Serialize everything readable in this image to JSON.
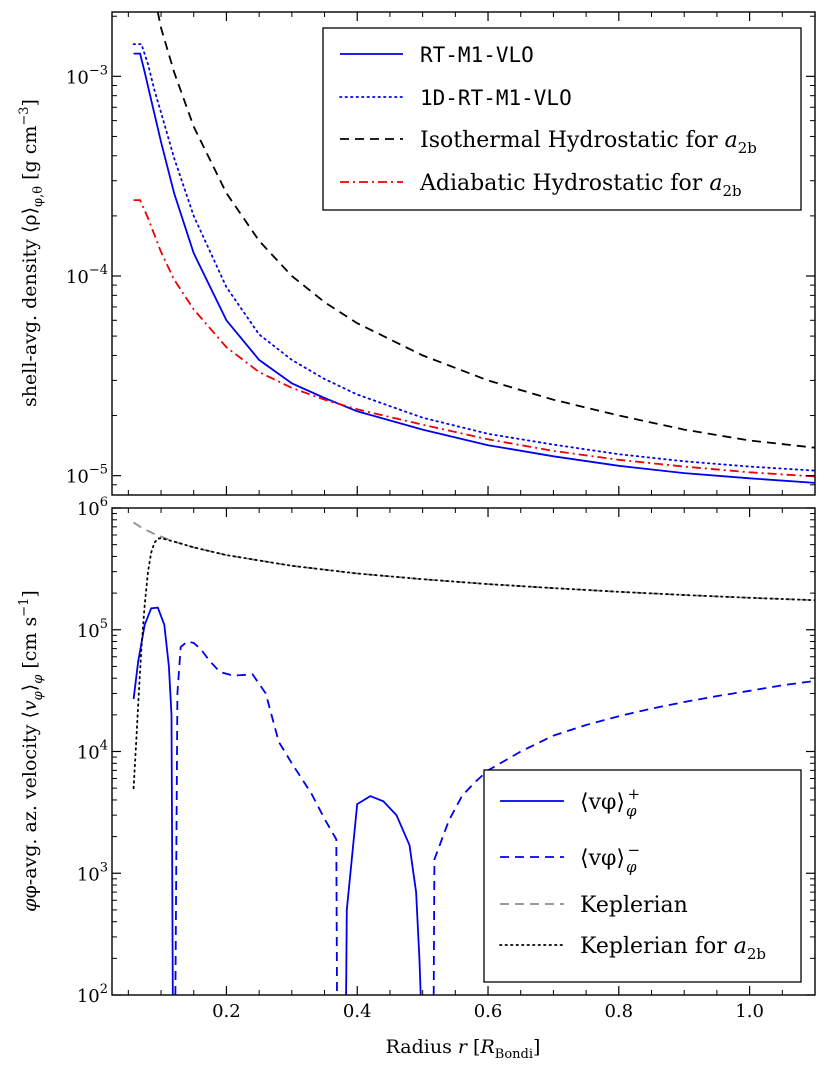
{
  "chart_data": [
    {
      "type": "line",
      "panel": "top",
      "yscale": "log",
      "ylabel": "shell-avg. density ⟨ρ⟩φ,θ [g cm⁻³]",
      "ylabel_parts": {
        "main": "shell-avg. density ⟨ρ⟩",
        "sub": "φ,θ",
        "unit_open": " [g cm",
        "unit_exp": "−3",
        "unit_close": "]"
      },
      "xlim": [
        0.025,
        1.1
      ],
      "ylim": [
        8e-06,
        0.0021
      ],
      "yticks": [
        {
          "value": 1e-05,
          "label": "10",
          "exp": "−5"
        },
        {
          "value": 0.0001,
          "label": "10",
          "exp": "−4"
        },
        {
          "value": 0.001,
          "label": "10",
          "exp": "−3"
        }
      ],
      "legend": {
        "placement": "top-right",
        "entries": [
          {
            "label": "RT-M1-VLO",
            "mono": true,
            "style": "solid",
            "color": "#0000ee"
          },
          {
            "label": "1D-RT-M1-VLO",
            "mono": true,
            "style": "dotted",
            "color": "#0000ee"
          },
          {
            "label": "Isothermal Hydrostatic for ",
            "math": "a",
            "sub": "2b",
            "style": "dashed",
            "color": "#000000"
          },
          {
            "label": "Adiabatic Hydrostatic for ",
            "math": "a",
            "sub": "2b",
            "style": "dashdot",
            "color": "#ee0000"
          }
        ]
      },
      "series": [
        {
          "name": "RT-M1-VLO",
          "style": "solid",
          "color": "#0000ee",
          "x": [
            0.058,
            0.068,
            0.075,
            0.085,
            0.1,
            0.12,
            0.15,
            0.2,
            0.25,
            0.3,
            0.35,
            0.4,
            0.5,
            0.6,
            0.7,
            0.8,
            0.9,
            1.0,
            1.1
          ],
          "y": [
            0.0013,
            0.0013,
            0.00105,
            0.00076,
            0.00047,
            0.00026,
            0.00013,
            6e-05,
            3.8e-05,
            2.9e-05,
            2.45e-05,
            2.1e-05,
            1.7e-05,
            1.42e-05,
            1.25e-05,
            1.12e-05,
            1.03e-05,
            9.7e-06,
            9.2e-06
          ]
        },
        {
          "name": "1D-RT-M1-VLO",
          "style": "dotted",
          "color": "#0000ee",
          "x": [
            0.058,
            0.07,
            0.08,
            0.09,
            0.1,
            0.12,
            0.15,
            0.2,
            0.25,
            0.3,
            0.35,
            0.4,
            0.5,
            0.6,
            0.7,
            0.8,
            0.9,
            1.0,
            1.1
          ],
          "y": [
            0.00145,
            0.00145,
            0.00115,
            0.00085,
            0.00066,
            0.00039,
            0.0002,
            8.8e-05,
            5.1e-05,
            3.8e-05,
            3.05e-05,
            2.55e-05,
            1.95e-05,
            1.62e-05,
            1.43e-05,
            1.28e-05,
            1.18e-05,
            1.11e-05,
            1.06e-05
          ]
        },
        {
          "name": "Isothermal Hydrostatic for a2b",
          "style": "dashed",
          "color": "#000000",
          "x": [
            0.095,
            0.1,
            0.12,
            0.15,
            0.2,
            0.25,
            0.3,
            0.35,
            0.4,
            0.5,
            0.6,
            0.7,
            0.8,
            0.9,
            1.0,
            1.1
          ],
          "y": [
            0.0021,
            0.00175,
            0.00105,
            0.00056,
            0.00026,
            0.00015,
            0.0001,
            7.4e-05,
            5.8e-05,
            4e-05,
            3e-05,
            2.4e-05,
            2e-05,
            1.7e-05,
            1.5e-05,
            1.38e-05
          ]
        },
        {
          "name": "Adiabatic Hydrostatic for a2b",
          "style": "dashdot",
          "color": "#ee0000",
          "x": [
            0.058,
            0.068,
            0.08,
            0.1,
            0.12,
            0.15,
            0.2,
            0.25,
            0.3,
            0.35,
            0.4,
            0.5,
            0.6,
            0.7,
            0.8,
            0.9,
            1.0,
            1.1
          ],
          "y": [
            0.00024,
            0.00024,
            0.000195,
            0.000132,
            9.6e-05,
            6.8e-05,
            4.4e-05,
            3.3e-05,
            2.75e-05,
            2.4e-05,
            2.15e-05,
            1.8e-05,
            1.52e-05,
            1.33e-05,
            1.2e-05,
            1.11e-05,
            1.04e-05,
            9.9e-06
          ]
        }
      ]
    },
    {
      "type": "line",
      "panel": "bottom",
      "yscale": "log",
      "xlabel": "Radius r [R_Bondi]",
      "xlabel_parts": {
        "main": "Radius ",
        "math": "r",
        "open": " [",
        "unit": "R",
        "sub": "Bondi",
        "close": "]"
      },
      "ylabel": "φ-avg. az. velocity ⟨vφ⟩φ [cm s⁻¹]",
      "ylabel_parts": {
        "main": "φ-avg. az. velocity ⟨",
        "v": "v",
        "vsub": "φ",
        "close": "⟩",
        "sub": "φ",
        "unit_open": " [cm s",
        "unit_exp": "−1",
        "unit_close": "]"
      },
      "xlim": [
        0.025,
        1.1
      ],
      "ylim": [
        100,
        1000000
      ],
      "xticks": [
        {
          "value": 0.2,
          "label": "0.2"
        },
        {
          "value": 0.4,
          "label": "0.4"
        },
        {
          "value": 0.6,
          "label": "0.6"
        },
        {
          "value": 0.8,
          "label": "0.8"
        },
        {
          "value": 1.0,
          "label": "1.0"
        }
      ],
      "yticks": [
        {
          "value": 100,
          "label": "10",
          "exp": "2"
        },
        {
          "value": 1000,
          "label": "10",
          "exp": "3"
        },
        {
          "value": 10000,
          "label": "10",
          "exp": "4"
        },
        {
          "value": 100000,
          "label": "10",
          "exp": "5"
        },
        {
          "value": 1000000,
          "label": "10",
          "exp": "6"
        }
      ],
      "legend": {
        "placement": "bottom-right",
        "entries": [
          {
            "label": "⟨vφ⟩",
            "sub": "φ",
            "sup": "+",
            "style": "solid",
            "color": "#0000ee"
          },
          {
            "label": "⟨vφ⟩",
            "sub": "φ",
            "sup": "−",
            "style": "dashed",
            "color": "#0000ee"
          },
          {
            "label": "Keplerian",
            "style": "dashed",
            "color": "#8c8c8c"
          },
          {
            "label": "Keplerian for ",
            "math": "a",
            "sub": "2b",
            "style": "dotted",
            "color": "#000000"
          }
        ]
      },
      "series": [
        {
          "name": "⟨vφ⟩φ+ segment 1",
          "style": "solid",
          "color": "#0000ee",
          "x": [
            0.058,
            0.065,
            0.075,
            0.085,
            0.095,
            0.105,
            0.112,
            0.116,
            0.118
          ],
          "y": [
            27000,
            55000,
            110000,
            150000,
            152000,
            110000,
            50000,
            20000,
            100
          ]
        },
        {
          "name": "⟨vφ⟩φ+ segment 2",
          "style": "solid",
          "color": "#0000ee",
          "x": [
            0.383,
            0.384,
            0.4,
            0.42,
            0.44,
            0.46,
            0.48,
            0.49,
            0.495,
            0.497
          ],
          "y": [
            100,
            500,
            3700,
            4300,
            3900,
            3000,
            1700,
            700,
            200,
            100
          ]
        },
        {
          "name": "⟨vφ⟩φ− segment 1",
          "style": "dashed",
          "color": "#0000ee",
          "x": [
            0.122,
            0.125,
            0.13,
            0.14,
            0.15,
            0.16,
            0.175,
            0.19,
            0.21,
            0.24,
            0.26,
            0.28,
            0.3,
            0.33,
            0.35,
            0.368,
            0.369
          ],
          "y": [
            100,
            30000,
            72000,
            80000,
            78000,
            70000,
            55000,
            45000,
            42000,
            43000,
            30000,
            12000,
            8000,
            4500,
            2800,
            1900,
            100
          ]
        },
        {
          "name": "⟨vφ⟩φ− segment 2",
          "style": "dashed",
          "color": "#0000ee",
          "x": [
            0.517,
            0.518,
            0.54,
            0.56,
            0.58,
            0.6,
            0.65,
            0.7,
            0.75,
            0.8,
            0.85,
            0.9,
            0.95,
            1.0,
            1.05,
            1.1
          ],
          "y": [
            100,
            1300,
            2700,
            4300,
            5600,
            7000,
            10000,
            13500,
            16500,
            19500,
            22500,
            25500,
            28500,
            31500,
            35000,
            38000
          ]
        },
        {
          "name": "Keplerian",
          "style": "dashed",
          "color": "#8c8c8c",
          "x": [
            0.058,
            0.07,
            0.09,
            0.12,
            0.15,
            0.2,
            0.3,
            0.4,
            0.5,
            0.6,
            0.7,
            0.8,
            0.9,
            1.0,
            1.1
          ],
          "y": [
            760000,
            690000,
            610000,
            530000,
            475000,
            410000,
            335000,
            290000,
            260000,
            237000,
            220000,
            205000,
            193000,
            183000,
            175000
          ]
        },
        {
          "name": "Keplerian for a2b",
          "style": "dotted",
          "color": "#000000",
          "x": [
            0.058,
            0.062,
            0.066,
            0.07,
            0.075,
            0.08,
            0.085,
            0.09,
            0.095,
            0.1,
            0.12,
            0.15,
            0.2,
            0.3,
            0.4,
            0.5,
            0.6,
            0.7,
            0.8,
            0.9,
            1.0,
            1.1
          ],
          "y": [
            5000,
            12000,
            30000,
            70000,
            160000,
            300000,
            430000,
            520000,
            560000,
            565000,
            530000,
            475000,
            410000,
            335000,
            290000,
            260000,
            237000,
            220000,
            205000,
            193000,
            183000,
            175000
          ]
        }
      ]
    }
  ]
}
